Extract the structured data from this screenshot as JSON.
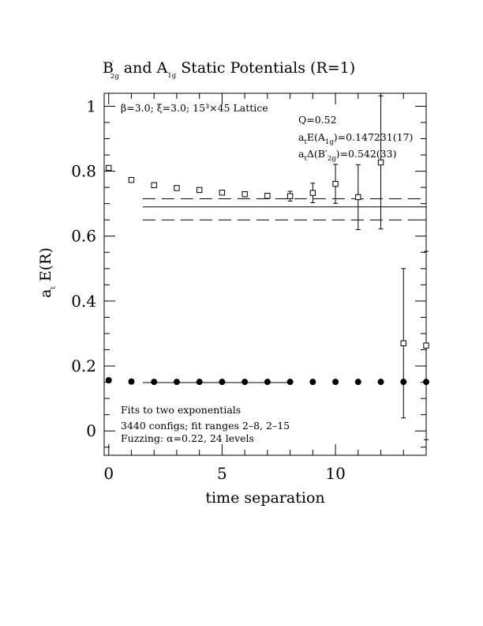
{
  "chart_data": {
    "type": "scatter",
    "title": {
      "b_base": "B",
      "b_sup": "′",
      "b_sub": "2g",
      "mid": " and A",
      "a_sub": "1g",
      "tail": " Static Potentials (R=1)"
    },
    "xlabel": "time separation",
    "ylabel": {
      "base": "a",
      "sub": "t",
      "tail": " E(R)"
    },
    "xlim": [
      -0.2,
      14.0
    ],
    "ylim": [
      -0.075,
      1.04
    ],
    "x_ticks": [
      0,
      5,
      10
    ],
    "x_tick_labels": [
      "0",
      "5",
      "10"
    ],
    "y_ticks": [
      0,
      0.2,
      0.4,
      0.6,
      0.8,
      1
    ],
    "y_tick_labels": [
      "0",
      "0.2",
      "0.4",
      "0.6",
      "0.8",
      "1"
    ],
    "annotations": {
      "lattice": "β=3.0; ξ=3.0; 15³×45 Lattice",
      "q": "Q=0.52",
      "ea1g": {
        "base": "a",
        "sub1": "t",
        "mid": "E(A",
        "sub2": "1g",
        "tail": ")=0.147231(17)"
      },
      "db2g": {
        "base": "a",
        "sub1": "t",
        "mid": "Δ(B′",
        "sub2": "2g",
        "tail": ")=0.542(33)"
      },
      "fits": "Fits to two exponentials",
      "configs": "3440 configs; fit ranges 2–8, 2–15",
      "fuzzing": "Fuzzing: α=0.22, 24 levels"
    },
    "series": [
      {
        "marker": "open-square",
        "points": [
          {
            "x": 0,
            "y": 0.81,
            "err": 0.006
          },
          {
            "x": 1,
            "y": 0.773,
            "err": 0.006
          },
          {
            "x": 2,
            "y": 0.757,
            "err": 0.006
          },
          {
            "x": 3,
            "y": 0.748,
            "err": 0.006
          },
          {
            "x": 4,
            "y": 0.742,
            "err": 0.006
          },
          {
            "x": 5,
            "y": 0.734,
            "err": 0.006
          },
          {
            "x": 6,
            "y": 0.729,
            "err": 0.008
          },
          {
            "x": 7,
            "y": 0.724,
            "err": 0.008
          },
          {
            "x": 8,
            "y": 0.723,
            "err": 0.015
          },
          {
            "x": 9,
            "y": 0.733,
            "err": 0.03
          },
          {
            "x": 10,
            "y": 0.761,
            "err": 0.06
          },
          {
            "x": 11,
            "y": 0.72,
            "err": 0.1
          },
          {
            "x": 12,
            "y": 0.827,
            "err": 0.205
          },
          {
            "x": 13,
            "y": 0.27,
            "err": 0.23
          },
          {
            "x": 14,
            "y": 0.263,
            "err": 0.29
          }
        ],
        "fit": {
          "y": 0.69,
          "err_lower": 0.65,
          "err_upper": 0.715,
          "x_start": 1.5,
          "x_end": 14.0
        }
      },
      {
        "marker": "filled-circle",
        "points": [
          {
            "x": 0,
            "y": 0.156
          },
          {
            "x": 1,
            "y": 0.152
          },
          {
            "x": 2,
            "y": 0.151
          },
          {
            "x": 3,
            "y": 0.151
          },
          {
            "x": 4,
            "y": 0.151
          },
          {
            "x": 5,
            "y": 0.151
          },
          {
            "x": 6,
            "y": 0.151
          },
          {
            "x": 7,
            "y": 0.151
          },
          {
            "x": 8,
            "y": 0.151
          },
          {
            "x": 9,
            "y": 0.151
          },
          {
            "x": 10,
            "y": 0.151
          },
          {
            "x": 11,
            "y": 0.151
          },
          {
            "x": 12,
            "y": 0.151
          },
          {
            "x": 13,
            "y": 0.151
          },
          {
            "x": 14,
            "y": 0.151
          }
        ],
        "fit": {
          "y": 0.149,
          "x_start": 1.5,
          "x_end": 8.0
        }
      }
    ]
  }
}
